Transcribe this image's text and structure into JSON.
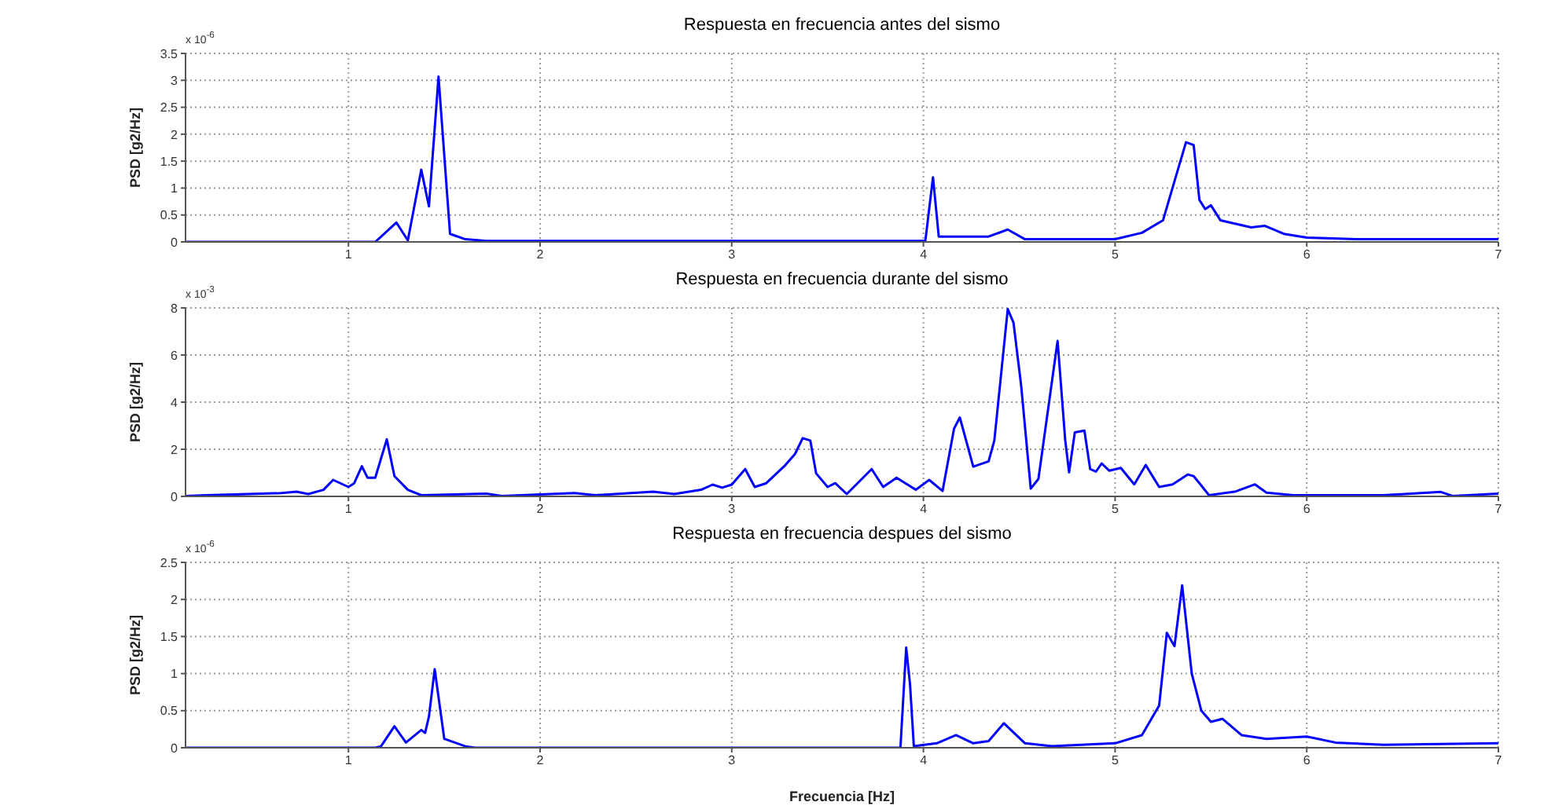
{
  "chart_data": [
    {
      "type": "line",
      "title": "Respuesta en frecuencia antes del sismo",
      "ylabel": "PSD [g2/Hz]",
      "annotations": [
        "x 10$^{-6}$"
      ],
      "xlim": [
        0.15,
        7
      ],
      "xticks": [
        1,
        2,
        3,
        4,
        5,
        6,
        7
      ],
      "ylim": [
        0,
        3.5
      ],
      "yticks": [
        0,
        0.5,
        1,
        1.5,
        2,
        2.5,
        3,
        3.5
      ],
      "grid": true,
      "marker": "none",
      "line_style": "solid",
      "series": [
        {
          "color": "#0000ff",
          "x": [
            0.15,
            1.14,
            1.25,
            1.31,
            1.38,
            1.42,
            1.47,
            1.53,
            1.61,
            1.72,
            4.01,
            4.05,
            4.08,
            4.34,
            4.44,
            4.53,
            5.0,
            5.14,
            5.25,
            5.33,
            5.37,
            5.41,
            5.44,
            5.47,
            5.5,
            5.55,
            5.71,
            5.78,
            5.88,
            6.0,
            6.26,
            7
          ],
          "values": [
            0,
            0,
            0.36,
            0.03,
            1.34,
            0.66,
            3.07,
            0.15,
            0.05,
            0.02,
            0.02,
            1.2,
            0.1,
            0.1,
            0.23,
            0.05,
            0.05,
            0.17,
            0.4,
            1.37,
            1.85,
            1.8,
            0.78,
            0.61,
            0.68,
            0.4,
            0.27,
            0.3,
            0.15,
            0.08,
            0.05,
            0.05
          ]
        }
      ]
    },
    {
      "type": "line",
      "title": "Respuesta en frecuencia durante del sismo",
      "ylabel": "PSD [g2/Hz]",
      "annotations": [
        "x 10$^{-3}$"
      ],
      "xlim": [
        0.15,
        7
      ],
      "xticks": [
        1,
        2,
        3,
        4,
        5,
        6,
        7
      ],
      "ylim": [
        0,
        8
      ],
      "yticks": [
        0,
        2,
        4,
        6,
        8
      ],
      "grid": true,
      "marker": "none",
      "line_style": "solid",
      "series": [
        {
          "color": "#0000ff",
          "x": [
            0.15,
            0.65,
            0.73,
            0.79,
            0.87,
            0.92,
            1.0,
            1.03,
            1.07,
            1.1,
            1.14,
            1.2,
            1.24,
            1.31,
            1.38,
            1.72,
            1.8,
            2.18,
            2.29,
            2.59,
            2.7,
            2.84,
            2.9,
            2.95,
            3.0,
            3.07,
            3.12,
            3.18,
            3.28,
            3.33,
            3.37,
            3.41,
            3.44,
            3.5,
            3.54,
            3.6,
            3.73,
            3.79,
            3.86,
            3.96,
            4.03,
            4.1,
            4.16,
            4.19,
            4.26,
            4.34,
            4.37,
            4.44,
            4.47,
            4.51,
            4.56,
            4.6,
            4.7,
            4.74,
            4.76,
            4.79,
            4.84,
            4.87,
            4.9,
            4.93,
            4.97,
            5.03,
            5.1,
            5.16,
            5.23,
            5.3,
            5.38,
            5.41,
            5.49,
            5.63,
            5.73,
            5.79,
            5.93,
            6.4,
            6.7,
            6.76,
            7
          ],
          "values": [
            0.02,
            0.14,
            0.2,
            0.1,
            0.28,
            0.7,
            0.4,
            0.56,
            1.28,
            0.79,
            0.79,
            2.42,
            0.86,
            0.28,
            0.05,
            0.12,
            0.02,
            0.14,
            0.05,
            0.2,
            0.1,
            0.28,
            0.5,
            0.37,
            0.5,
            1.16,
            0.4,
            0.56,
            1.33,
            1.8,
            2.47,
            2.37,
            0.98,
            0.4,
            0.56,
            0.1,
            1.16,
            0.4,
            0.79,
            0.28,
            0.7,
            0.23,
            2.88,
            3.35,
            1.26,
            1.49,
            2.37,
            7.95,
            7.37,
            4.7,
            0.33,
            0.74,
            6.6,
            2.37,
            1.02,
            2.72,
            2.79,
            1.16,
            1.05,
            1.4,
            1.09,
            1.21,
            0.51,
            1.33,
            0.4,
            0.51,
            0.93,
            0.86,
            0.05,
            0.21,
            0.51,
            0.16,
            0.05,
            0.05,
            0.19,
            0.02,
            0.12
          ]
        }
      ]
    },
    {
      "type": "line",
      "title": "Respuesta en frecuencia despues del sismo",
      "ylabel": "PSD [g2/Hz]",
      "xlabel": "Frecuencia [Hz]",
      "annotations": [
        "x 10$^{-6}$"
      ],
      "xlim": [
        0.15,
        7
      ],
      "xticks": [
        1,
        2,
        3,
        4,
        5,
        6,
        7
      ],
      "ylim": [
        0,
        2.5
      ],
      "yticks": [
        0,
        0.5,
        1,
        1.5,
        2,
        2.5
      ],
      "grid": true,
      "marker": "none",
      "line_style": "solid",
      "series": [
        {
          "color": "#0000ff",
          "x": [
            0.15,
            1.14,
            1.17,
            1.24,
            1.3,
            1.38,
            1.4,
            1.42,
            1.45,
            1.5,
            1.61,
            1.66,
            3.88,
            3.91,
            3.93,
            3.95,
            4.07,
            4.17,
            4.26,
            4.34,
            4.42,
            4.53,
            4.67,
            5.0,
            5.14,
            5.23,
            5.27,
            5.31,
            5.35,
            5.4,
            5.45,
            5.5,
            5.56,
            5.66,
            5.79,
            6.0,
            6.15,
            6.4,
            7
          ],
          "values": [
            0,
            0,
            0.02,
            0.29,
            0.07,
            0.24,
            0.2,
            0.42,
            1.06,
            0.12,
            0.02,
            0,
            0,
            1.35,
            0.86,
            0.02,
            0.06,
            0.17,
            0.06,
            0.09,
            0.33,
            0.06,
            0.02,
            0.06,
            0.17,
            0.57,
            1.55,
            1.37,
            2.19,
            1.0,
            0.5,
            0.35,
            0.39,
            0.17,
            0.12,
            0.15,
            0.07,
            0.04,
            0.06
          ]
        }
      ]
    }
  ]
}
